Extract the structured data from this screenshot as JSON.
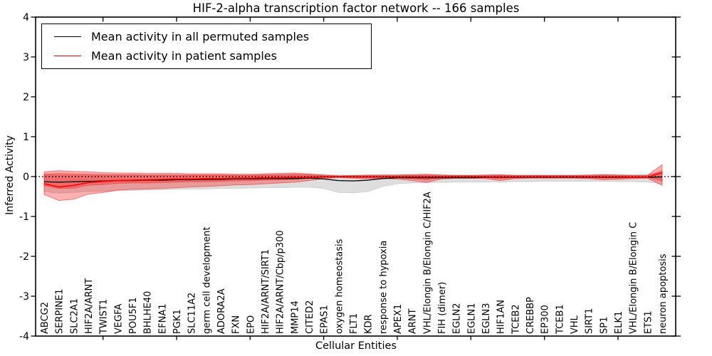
{
  "chart_data": {
    "type": "line",
    "title": "HIF-2-alpha transcription factor network -- 166 samples",
    "xlabel": "Cellular Entities",
    "ylabel": "Inferred Activity",
    "ylim": [
      -4,
      4
    ],
    "yticks": [
      -4,
      -3,
      -2,
      -1,
      0,
      1,
      2,
      3,
      4
    ],
    "xtick_category_indices": [
      4,
      9,
      14,
      19,
      24,
      29,
      34,
      39
    ],
    "grid": false,
    "legend_position": "upper left",
    "zero_line": {
      "y": 0,
      "style": "dotted",
      "color": "#000000"
    },
    "colors": {
      "permuted_line": "#000000",
      "patient_line": "#ff0000",
      "permuted_band_fill": "rgba(0,0,0,0.13)",
      "patient_band_fill": "rgba(255,0,0,0.30)",
      "frame": "#000000"
    },
    "categories": [
      "ABCG2",
      "SERPINE1",
      "SLC2A1",
      "HIF2A/ARNT",
      "TWIST1",
      "VEGFA",
      "POU5F1",
      "BHLHE40",
      "EFNA1",
      "PGK1",
      "SLC11A2",
      "germ cell development",
      "ADORA2A",
      "FXN",
      "EPO",
      "HIF2A/ARNT/SIRT1",
      "HIF2A/ARNT/Cbp/p300",
      "MMP14",
      "CITED2",
      "EPAS1",
      "oxygen homeostasis",
      "FLT1",
      "KDR",
      "response to hypoxia",
      "APEX1",
      "ARNT",
      "VHL/Elongin B/Elongin C/HIF2A",
      "FIH (dimer)",
      "EGLN2",
      "EGLN1",
      "EGLN3",
      "HIF1AN",
      "TCEB2",
      "CREBBP",
      "EP300",
      "TCEB1",
      "VHL",
      "SIRT1",
      "SP1",
      "ELK1",
      "VHL/Elongin B/Elongin C",
      "ETS1",
      "neuron apoptosis"
    ],
    "series": [
      {
        "name": "Mean activity in all permuted samples",
        "color": "#000000",
        "width": 1.3,
        "values": [
          -0.13,
          -0.14,
          -0.13,
          -0.12,
          -0.11,
          -0.1,
          -0.1,
          -0.09,
          -0.09,
          -0.08,
          -0.08,
          -0.07,
          -0.07,
          -0.06,
          -0.06,
          -0.05,
          -0.05,
          -0.05,
          -0.04,
          -0.06,
          -0.1,
          -0.11,
          -0.09,
          -0.05,
          -0.03,
          -0.03,
          -0.03,
          -0.03,
          -0.03,
          -0.03,
          -0.02,
          -0.02,
          -0.02,
          -0.02,
          -0.02,
          -0.02,
          -0.02,
          -0.02,
          -0.02,
          -0.02,
          -0.02,
          -0.02,
          -0.01
        ]
      },
      {
        "name": "Mean activity in patient samples",
        "color": "#ff0000",
        "width": 1.7,
        "values": [
          -0.18,
          -0.26,
          -0.22,
          -0.15,
          -0.12,
          -0.1,
          -0.09,
          -0.08,
          -0.07,
          -0.06,
          -0.06,
          -0.05,
          -0.05,
          -0.04,
          -0.04,
          -0.03,
          -0.03,
          -0.02,
          -0.02,
          -0.01,
          -0.01,
          -0.01,
          -0.01,
          -0.01,
          -0.01,
          -0.01,
          -0.01,
          -0.01,
          -0.01,
          -0.01,
          -0.01,
          -0.01,
          -0.01,
          -0.01,
          -0.01,
          -0.01,
          -0.01,
          -0.01,
          -0.01,
          -0.01,
          -0.02,
          -0.02,
          0.1
        ]
      }
    ],
    "bands": [
      {
        "id": "permuted-band",
        "fill": "rgba(0,0,0,0.13)",
        "stroke": "rgba(0,0,0,0.10)",
        "hi": [
          0.05,
          0.04,
          0.04,
          0.04,
          0.04,
          0.04,
          0.04,
          0.04,
          0.04,
          0.04,
          0.04,
          0.04,
          0.04,
          0.04,
          0.04,
          0.05,
          0.06,
          0.07,
          0.06,
          0.05,
          0.04,
          0.03,
          0.03,
          0.04,
          0.05,
          0.05,
          0.05,
          0.05,
          0.04,
          0.04,
          0.04,
          0.04,
          0.04,
          0.04,
          0.04,
          0.04,
          0.04,
          0.04,
          0.05,
          0.05,
          0.05,
          0.06,
          0.1
        ],
        "lo": [
          -0.38,
          -0.42,
          -0.4,
          -0.38,
          -0.37,
          -0.36,
          -0.35,
          -0.34,
          -0.33,
          -0.32,
          -0.32,
          -0.31,
          -0.3,
          -0.3,
          -0.29,
          -0.28,
          -0.28,
          -0.27,
          -0.27,
          -0.3,
          -0.4,
          -0.41,
          -0.38,
          -0.25,
          -0.18,
          -0.16,
          -0.15,
          -0.15,
          -0.14,
          -0.14,
          -0.14,
          -0.14,
          -0.13,
          -0.13,
          -0.12,
          -0.12,
          -0.12,
          -0.12,
          -0.12,
          -0.13,
          -0.13,
          -0.14,
          -0.18
        ]
      },
      {
        "id": "patient-band",
        "fill": "rgba(255,0,0,0.30)",
        "stroke": "rgba(255,0,0,0.45)",
        "hi": [
          0.12,
          0.15,
          0.13,
          0.12,
          0.1,
          0.09,
          0.09,
          0.08,
          0.08,
          0.08,
          0.07,
          0.07,
          0.07,
          0.06,
          0.06,
          0.07,
          0.08,
          0.09,
          0.07,
          0.04,
          0.02,
          0.03,
          0.04,
          0.04,
          0.04,
          0.05,
          0.06,
          0.04,
          0.03,
          0.03,
          0.04,
          0.05,
          0.03,
          0.03,
          0.03,
          0.03,
          0.03,
          0.04,
          0.05,
          0.04,
          0.03,
          0.03,
          0.3
        ],
        "lo": [
          -0.45,
          -0.6,
          -0.57,
          -0.44,
          -0.4,
          -0.34,
          -0.32,
          -0.31,
          -0.3,
          -0.28,
          -0.26,
          -0.25,
          -0.23,
          -0.21,
          -0.2,
          -0.18,
          -0.16,
          -0.14,
          -0.1,
          -0.05,
          -0.02,
          -0.04,
          -0.05,
          -0.05,
          -0.06,
          -0.1,
          -0.15,
          -0.06,
          -0.04,
          -0.04,
          -0.05,
          -0.1,
          -0.05,
          -0.04,
          -0.04,
          -0.04,
          -0.04,
          -0.05,
          -0.08,
          -0.07,
          -0.05,
          -0.04,
          -0.22
        ]
      },
      {
        "id": "patient-band-inner",
        "fill": "rgba(255,0,0,0.30)",
        "stroke": "rgba(255,0,0,0.35)",
        "hi": [
          0.06,
          0.08,
          0.07,
          0.06,
          0.05,
          0.05,
          0.05,
          0.04,
          0.04,
          0.04,
          0.04,
          0.04,
          0.04,
          0.03,
          0.03,
          0.04,
          0.04,
          0.05,
          0.04,
          0.02,
          0.01,
          0.02,
          0.02,
          0.02,
          0.02,
          0.03,
          0.03,
          0.02,
          0.02,
          0.02,
          0.02,
          0.03,
          0.02,
          0.02,
          0.02,
          0.02,
          0.02,
          0.02,
          0.03,
          0.02,
          0.02,
          0.02,
          0.15
        ],
        "lo": [
          -0.23,
          -0.3,
          -0.29,
          -0.22,
          -0.2,
          -0.17,
          -0.16,
          -0.16,
          -0.15,
          -0.14,
          -0.13,
          -0.13,
          -0.12,
          -0.11,
          -0.1,
          -0.09,
          -0.08,
          -0.07,
          -0.05,
          -0.03,
          -0.01,
          -0.02,
          -0.03,
          -0.03,
          -0.03,
          -0.05,
          -0.08,
          -0.03,
          -0.02,
          -0.02,
          -0.03,
          -0.05,
          -0.03,
          -0.02,
          -0.02,
          -0.02,
          -0.02,
          -0.03,
          -0.04,
          -0.04,
          -0.03,
          -0.02,
          -0.11
        ]
      }
    ]
  }
}
